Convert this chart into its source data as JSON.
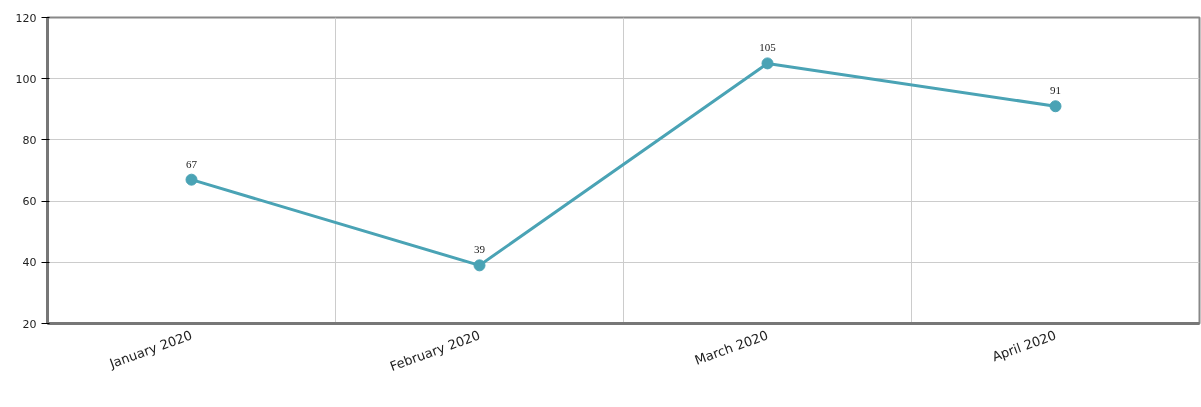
{
  "chart_data": {
    "type": "line",
    "categories": [
      "January 2020",
      "February 2020",
      "March 2020",
      "April 2020"
    ],
    "series": [
      {
        "color": "#4aa3b5",
        "values": [
          67,
          39,
          105,
          91
        ]
      }
    ],
    "ylim": [
      20,
      120
    ],
    "yticks": [
      20,
      40,
      60,
      80,
      100,
      120
    ],
    "grid": true,
    "data_labels": true,
    "marker": "circle",
    "line_style": "solid"
  }
}
